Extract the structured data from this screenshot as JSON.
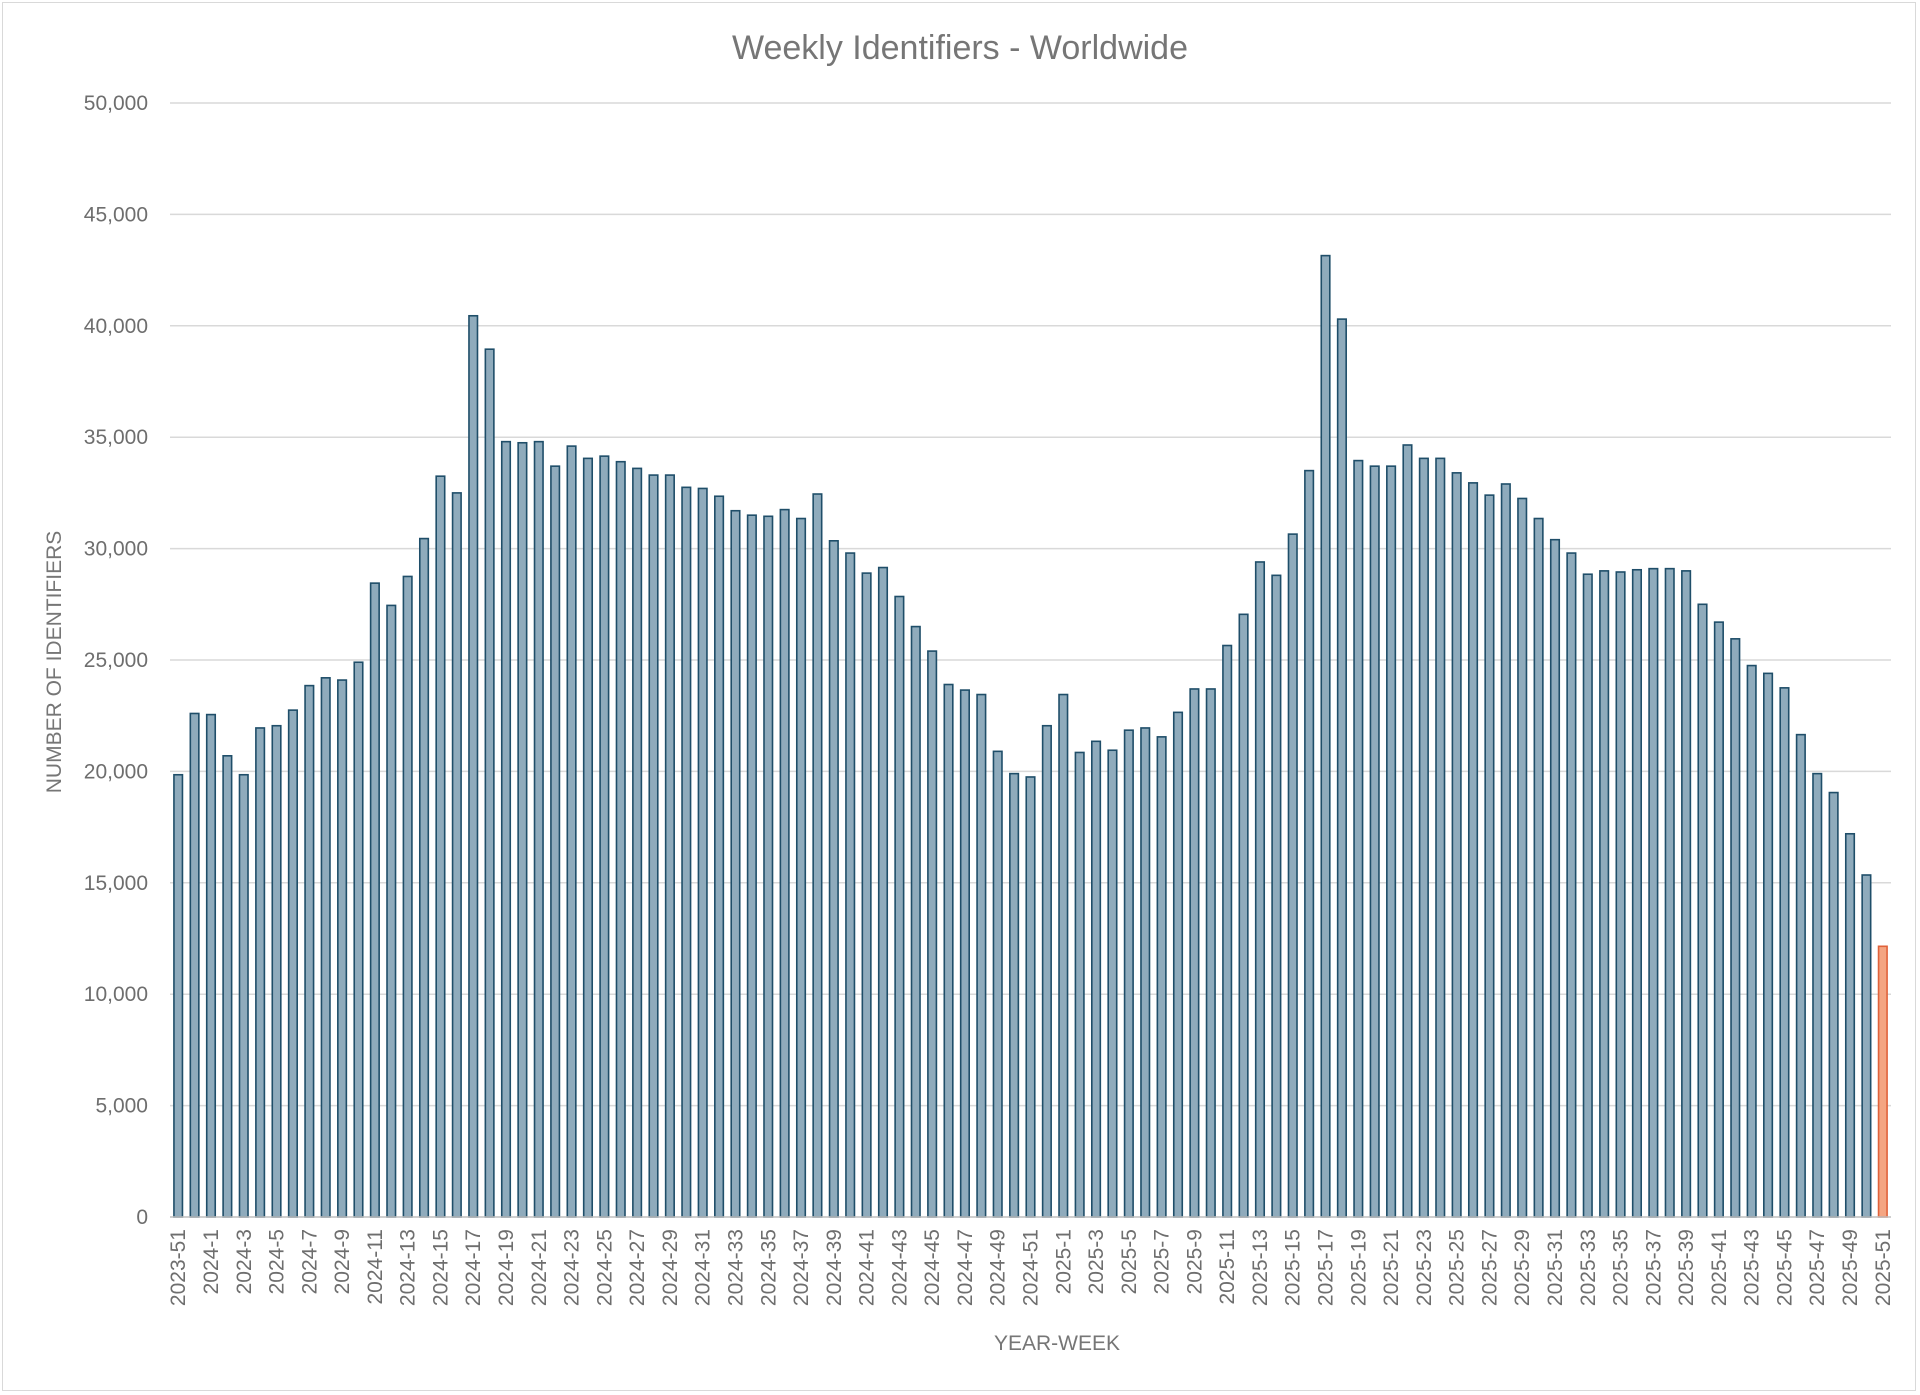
{
  "chart_data": {
    "type": "bar",
    "title": "Weekly Identifiers - Worldwide",
    "xlabel": "YEAR-WEEK",
    "ylabel": "NUMBER OF IDENTIFIERS",
    "ylim": [
      0,
      50000
    ],
    "y_ticks": [
      0,
      5000,
      10000,
      15000,
      20000,
      25000,
      30000,
      35000,
      40000,
      45000,
      50000
    ],
    "y_tick_labels": [
      "0",
      "5,000",
      "10,000",
      "15,000",
      "20,000",
      "25,000",
      "30,000",
      "35,000",
      "40,000",
      "45,000",
      "50,000"
    ],
    "grid": true,
    "legend": "none",
    "colors": {
      "bar": "#8fabbc",
      "bar_edge": "#1f4e69",
      "highlight": "#f4a582",
      "highlight_edge": "#e0623a"
    },
    "highlight_categories": [
      "2025-51"
    ],
    "categories": [
      "2023-51",
      "2023-52",
      "2024-1",
      "2024-2",
      "2024-3",
      "2024-4",
      "2024-5",
      "2024-6",
      "2024-7",
      "2024-8",
      "2024-9",
      "2024-10",
      "2024-11",
      "2024-12",
      "2024-13",
      "2024-14",
      "2024-15",
      "2024-16",
      "2024-17",
      "2024-18",
      "2024-19",
      "2024-20",
      "2024-21",
      "2024-22",
      "2024-23",
      "2024-24",
      "2024-25",
      "2024-26",
      "2024-27",
      "2024-28",
      "2024-29",
      "2024-30",
      "2024-31",
      "2024-32",
      "2024-33",
      "2024-34",
      "2024-35",
      "2024-36",
      "2024-37",
      "2024-38",
      "2024-39",
      "2024-40",
      "2024-41",
      "2024-42",
      "2024-43",
      "2024-44",
      "2024-45",
      "2024-46",
      "2024-47",
      "2024-48",
      "2024-49",
      "2024-50",
      "2024-51",
      "2024-52",
      "2025-1",
      "2025-2",
      "2025-3",
      "2025-4",
      "2025-5",
      "2025-6",
      "2025-7",
      "2025-8",
      "2025-9",
      "2025-10",
      "2025-11",
      "2025-12",
      "2025-13",
      "2025-14",
      "2025-15",
      "2025-16",
      "2025-17",
      "2025-18",
      "2025-19",
      "2025-20",
      "2025-21",
      "2025-22",
      "2025-23",
      "2025-24",
      "2025-25",
      "2025-26",
      "2025-27",
      "2025-28",
      "2025-29",
      "2025-30",
      "2025-31",
      "2025-32",
      "2025-33",
      "2025-34",
      "2025-35",
      "2025-36",
      "2025-37",
      "2025-38",
      "2025-39",
      "2025-40",
      "2025-41",
      "2025-42",
      "2025-43",
      "2025-44",
      "2025-45",
      "2025-46",
      "2025-47",
      "2025-48",
      "2025-49",
      "2025-50",
      "2025-51"
    ],
    "values": [
      19850,
      22600,
      22550,
      20700,
      19850,
      21950,
      22050,
      22750,
      23850,
      24200,
      24100,
      24900,
      28450,
      27450,
      28750,
      30450,
      33250,
      32500,
      40450,
      38950,
      34800,
      34750,
      34800,
      33700,
      34600,
      34050,
      34150,
      33900,
      33600,
      33300,
      33300,
      32750,
      32700,
      32350,
      31700,
      31500,
      31450,
      31750,
      31350,
      32450,
      30350,
      29800,
      28900,
      29150,
      27850,
      26500,
      25400,
      23900,
      23650,
      23450,
      20900,
      19900,
      19750,
      22050,
      23450,
      20850,
      21350,
      20950,
      21850,
      21950,
      21550,
      22650,
      23700,
      23700,
      25650,
      27050,
      29400,
      28800,
      30650,
      33500,
      43150,
      40300,
      33950,
      33700,
      33700,
      34650,
      34050,
      34050,
      33400,
      32950,
      32400,
      32900,
      32250,
      31350,
      30400,
      29800,
      28850,
      29000,
      28950,
      29050,
      29100,
      29100,
      29000,
      27500,
      26700,
      25950,
      24750,
      24400,
      23750,
      21650,
      19900,
      19050,
      17200,
      15350,
      12150
    ]
  }
}
